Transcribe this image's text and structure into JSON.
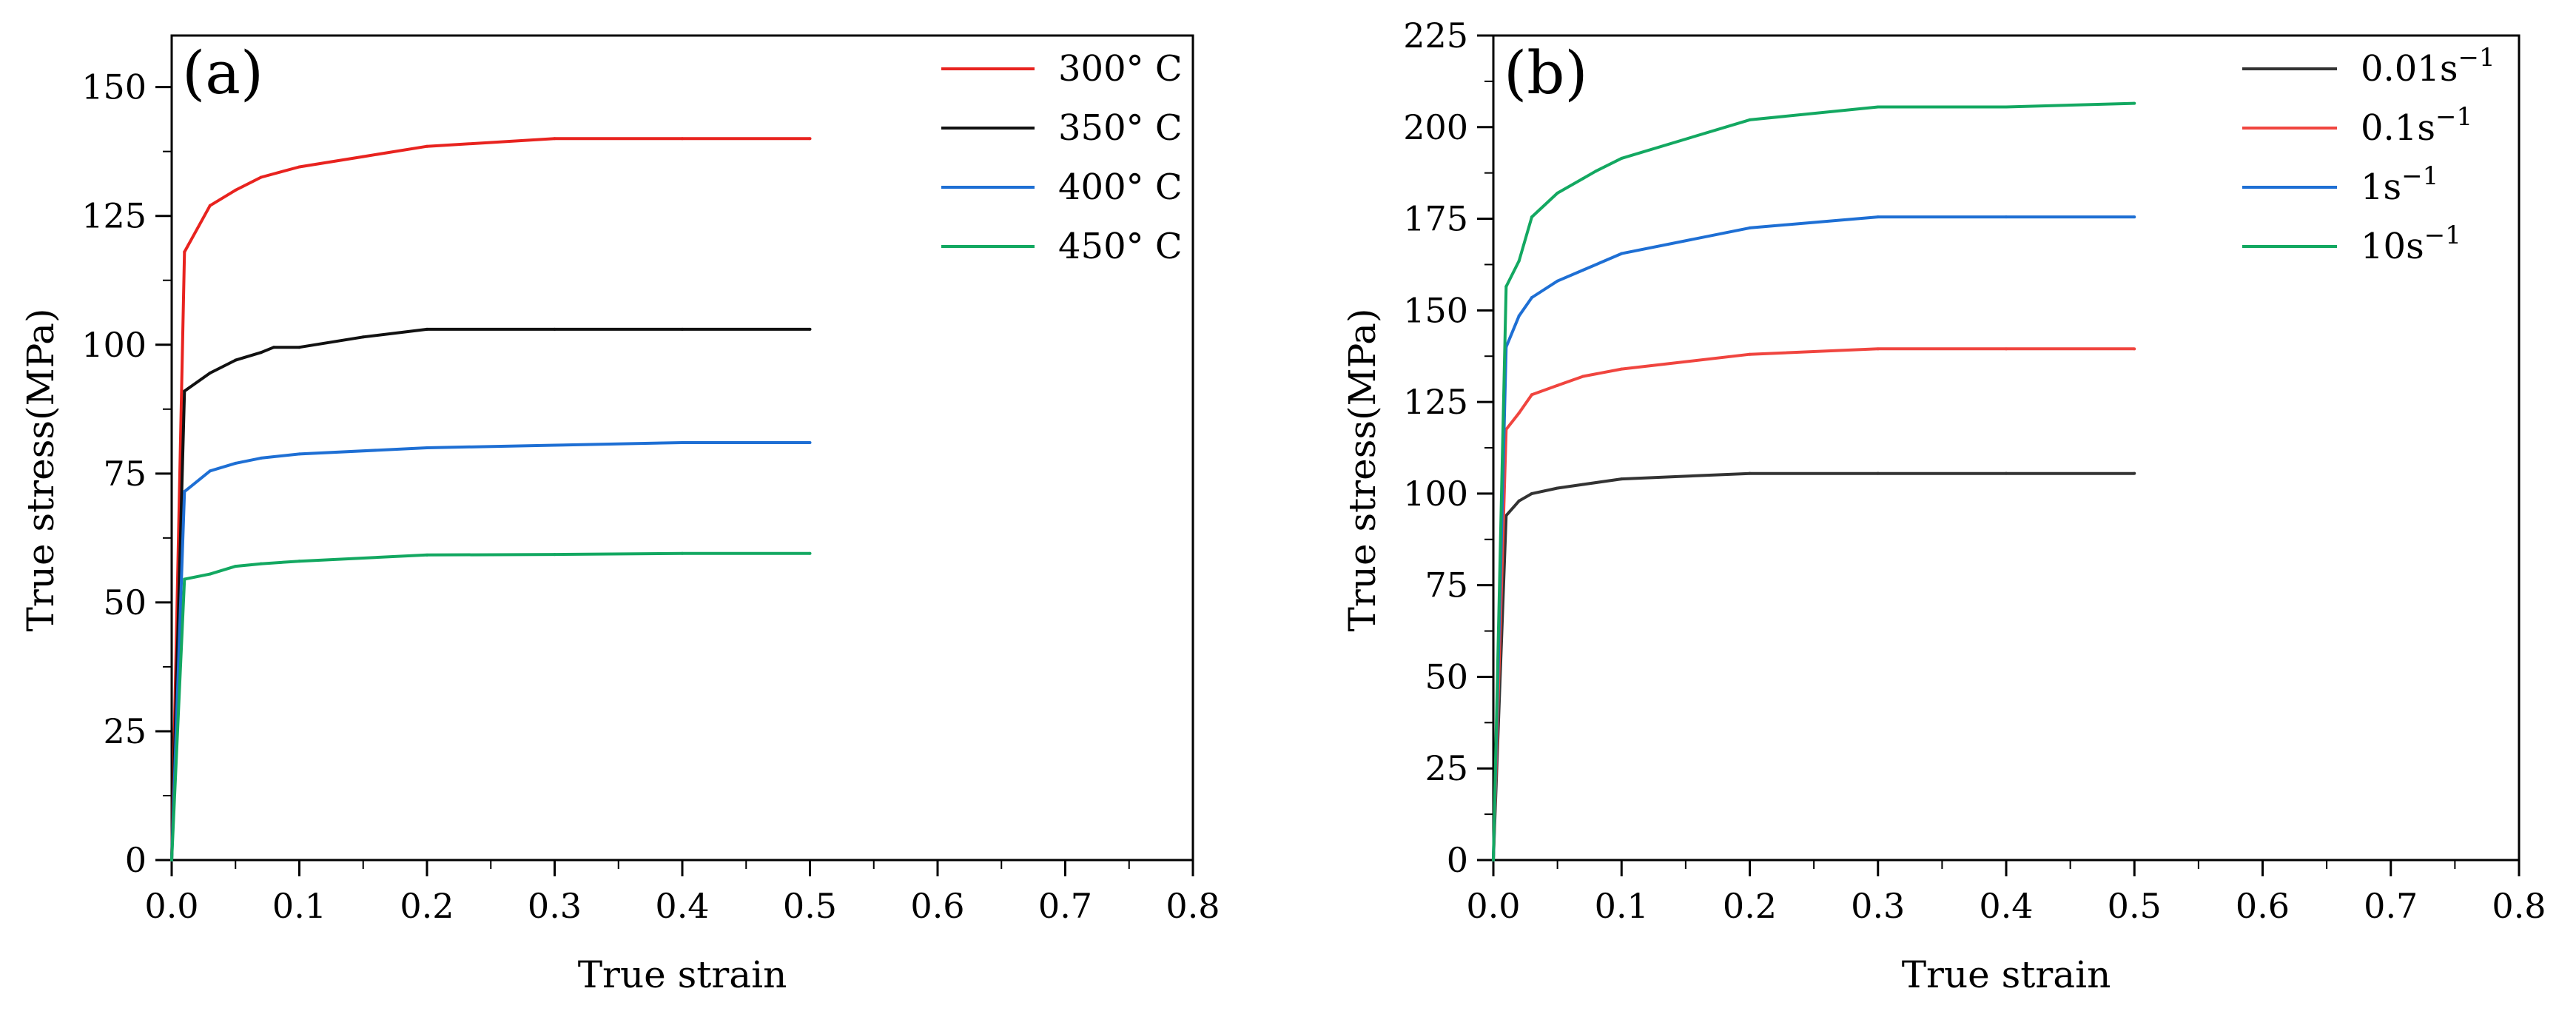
{
  "chart_data": [
    {
      "type": "line",
      "panel_label": "(a)",
      "xlabel": "True strain",
      "ylabel": "True stress(MPa)",
      "xlim": [
        0,
        0.8
      ],
      "ylim": [
        0,
        160
      ],
      "xticks": [
        0.0,
        0.1,
        0.2,
        0.3,
        0.4,
        0.5,
        0.6,
        0.7,
        0.8
      ],
      "xtick_labels": [
        "0.0",
        "0.1",
        "0.2",
        "0.3",
        "0.4",
        "0.5",
        "0.6",
        "0.7",
        "0.8"
      ],
      "yticks": [
        0,
        25,
        50,
        75,
        100,
        125,
        150
      ],
      "ytick_labels": [
        "0",
        "25",
        "50",
        "75",
        "100",
        "125",
        "150"
      ],
      "legend_position": "top-right",
      "series": [
        {
          "name": "300° C",
          "label_base": "300° C",
          "label_sup": "",
          "color": "#e8231f",
          "x": [
            0,
            0.01,
            0.03,
            0.05,
            0.07,
            0.1,
            0.15,
            0.2,
            0.3,
            0.4,
            0.5
          ],
          "y": [
            0,
            118,
            127,
            130,
            132.5,
            134.5,
            136.5,
            138.5,
            140,
            140,
            140
          ]
        },
        {
          "name": "350° C",
          "label_base": "350° C",
          "label_sup": "",
          "color": "#111111",
          "x": [
            0,
            0.01,
            0.03,
            0.05,
            0.07,
            0.08,
            0.1,
            0.15,
            0.2,
            0.3,
            0.4,
            0.5
          ],
          "y": [
            0,
            91,
            94.5,
            97,
            98.5,
            99.5,
            99.5,
            101.5,
            103,
            103,
            103,
            103
          ]
        },
        {
          "name": "400° C",
          "label_base": "400° C",
          "label_sup": "",
          "color": "#1e6fd4",
          "x": [
            0,
            0.01,
            0.03,
            0.05,
            0.07,
            0.1,
            0.2,
            0.3,
            0.4,
            0.5
          ],
          "y": [
            0,
            71.5,
            75.5,
            77,
            78,
            78.8,
            80,
            80.5,
            81,
            81
          ]
        },
        {
          "name": "450° C",
          "label_base": "450° C",
          "label_sup": "",
          "color": "#13a861",
          "x": [
            0,
            0.01,
            0.03,
            0.05,
            0.07,
            0.1,
            0.2,
            0.3,
            0.4,
            0.5
          ],
          "y": [
            0,
            54.5,
            55.5,
            57,
            57.5,
            58,
            59.2,
            59.3,
            59.5,
            59.5
          ]
        }
      ]
    },
    {
      "type": "line",
      "panel_label": "(b)",
      "xlabel": "True strain",
      "ylabel": "True stress(MPa)",
      "xlim": [
        0,
        0.8
      ],
      "ylim": [
        0,
        225
      ],
      "xticks": [
        0.0,
        0.1,
        0.2,
        0.3,
        0.4,
        0.5,
        0.6,
        0.7,
        0.8
      ],
      "xtick_labels": [
        "0.0",
        "0.1",
        "0.2",
        "0.3",
        "0.4",
        "0.5",
        "0.6",
        "0.7",
        "0.8"
      ],
      "yticks": [
        0,
        25,
        50,
        75,
        100,
        125,
        150,
        175,
        200,
        225
      ],
      "ytick_labels": [
        "0",
        "25",
        "50",
        "75",
        "100",
        "125",
        "150",
        "175",
        "200",
        "225"
      ],
      "legend_position": "top-right",
      "series": [
        {
          "name": "0.01s−1",
          "label_base": "0.01s",
          "label_sup": "−1",
          "color": "#333333",
          "x": [
            0,
            0.01,
            0.02,
            0.03,
            0.05,
            0.07,
            0.1,
            0.2,
            0.3,
            0.4,
            0.5
          ],
          "y": [
            0,
            94,
            98,
            100,
            101.5,
            102.5,
            104,
            105.5,
            105.5,
            105.5,
            105.5
          ]
        },
        {
          "name": "0.1s−1",
          "label_base": "0.1s",
          "label_sup": "−1",
          "color": "#f0453f",
          "x": [
            0,
            0.01,
            0.02,
            0.03,
            0.05,
            0.07,
            0.1,
            0.2,
            0.3,
            0.4,
            0.5
          ],
          "y": [
            0,
            117.5,
            122,
            127,
            129.5,
            132,
            134,
            138,
            139.5,
            139.5,
            139.5
          ]
        },
        {
          "name": "1s−1",
          "label_base": "1s",
          "label_sup": "−1",
          "color": "#1e6fd4",
          "x": [
            0,
            0.01,
            0.02,
            0.03,
            0.05,
            0.07,
            0.1,
            0.2,
            0.3,
            0.4,
            0.5
          ],
          "y": [
            0,
            140,
            148.5,
            153.5,
            158,
            161,
            165.5,
            172.5,
            175.5,
            175.5,
            175.5
          ]
        },
        {
          "name": "10s−1",
          "label_base": "10s",
          "label_sup": "−1",
          "color": "#13a861",
          "x": [
            0,
            0.01,
            0.02,
            0.03,
            0.05,
            0.07,
            0.08,
            0.1,
            0.2,
            0.3,
            0.4,
            0.5
          ],
          "y": [
            0,
            156.5,
            163.5,
            175.5,
            182,
            186,
            188,
            191.5,
            202,
            205.5,
            205.5,
            206.5
          ]
        }
      ]
    }
  ]
}
